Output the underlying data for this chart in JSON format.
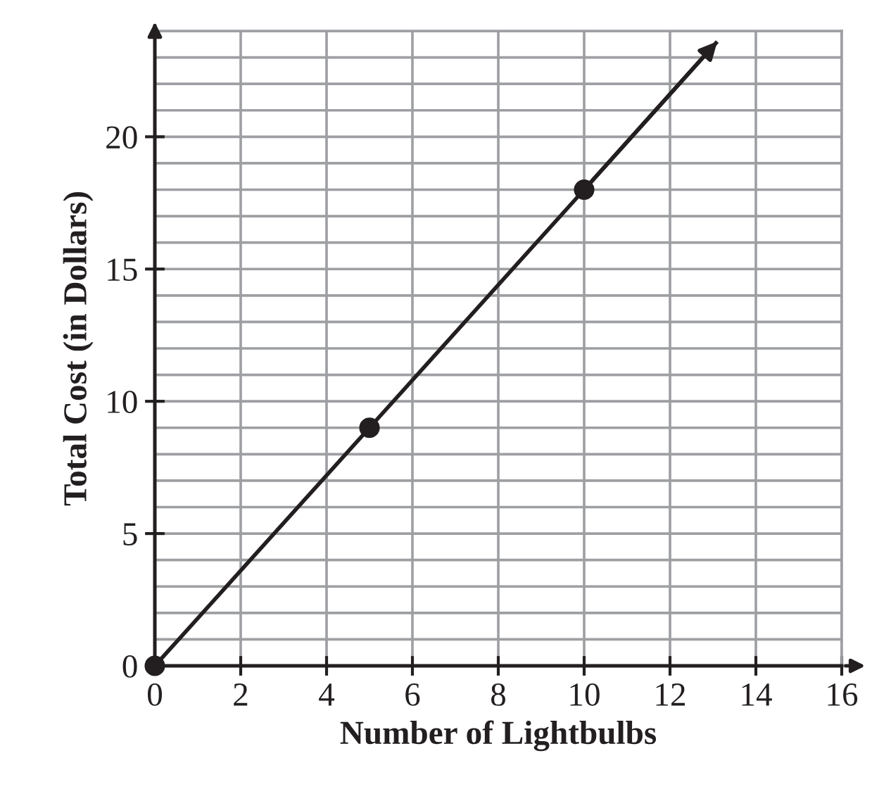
{
  "chart_data": {
    "type": "scatter",
    "xlabel": "Number of Lightbulbs",
    "ylabel": "Total Cost (in Dollars)",
    "xlim": [
      0,
      16
    ],
    "ylim": [
      0,
      24
    ],
    "xticks": [
      0,
      2,
      4,
      6,
      8,
      10,
      12,
      14,
      16
    ],
    "yticks": [
      0,
      {
        "value": 1,
        "label": null
      },
      {
        "value": 2,
        "label": null
      },
      {
        "value": 3,
        "label": null
      },
      {
        "value": 4,
        "label": null
      },
      5,
      {
        "value": 6,
        "label": null
      },
      {
        "value": 7,
        "label": null
      },
      {
        "value": 8,
        "label": null
      },
      {
        "value": 9,
        "label": null
      },
      10,
      {
        "value": 11,
        "label": null
      },
      {
        "value": 12,
        "label": null
      },
      {
        "value": 13,
        "label": null
      },
      {
        "value": 14,
        "label": null
      },
      15,
      {
        "value": 16,
        "label": null
      },
      {
        "value": 17,
        "label": null
      },
      {
        "value": 18,
        "label": null
      },
      {
        "value": 19,
        "label": null
      },
      20,
      {
        "value": 21,
        "label": null
      },
      {
        "value": 22,
        "label": null
      },
      {
        "value": 23,
        "label": null
      },
      {
        "value": 24,
        "label": null
      }
    ],
    "grid": true,
    "series": [
      {
        "type": "line",
        "marker": "none",
        "color": "#231f20",
        "x": [
          0,
          5,
          10,
          13.1
        ],
        "values": [
          0,
          9,
          18,
          23.6
        ]
      },
      {
        "marker": "circle",
        "color": "#231f20",
        "x": [
          0,
          5,
          10
        ],
        "values": [
          0,
          9,
          18
        ]
      }
    ]
  }
}
